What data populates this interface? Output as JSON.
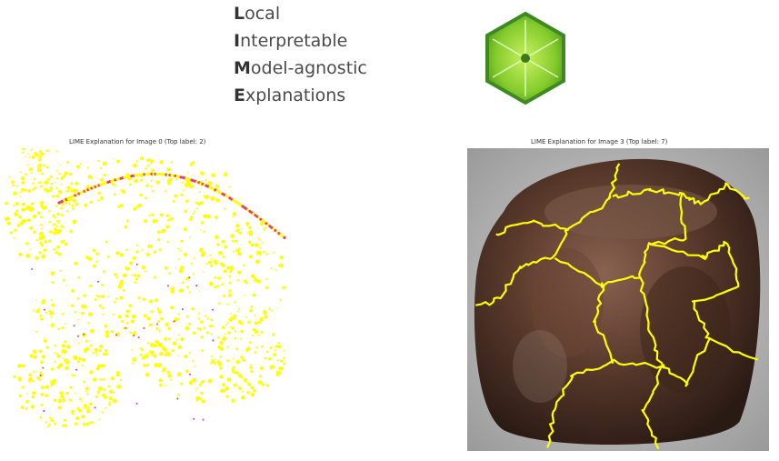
{
  "acronym": {
    "lines": [
      {
        "first": "L",
        "rest": "ocal"
      },
      {
        "first": "I",
        "rest": "nterpretable"
      },
      {
        "first": "M",
        "rest": "odel-agnostic"
      },
      {
        "first": "E",
        "rest": "xplanations"
      }
    ]
  },
  "logo": {
    "icon": "lime-slice-hexagon-icon",
    "fill_color": "#7ec62a",
    "border_color": "#3d8a22"
  },
  "panels": [
    {
      "title": "LIME Explanation for Image 0 (Top label: 2)",
      "boundary_color": "#ffff00",
      "highlight_color": "#e0406a"
    },
    {
      "title": "LIME Explanation for Image 3 (Top label: 7)",
      "boundary_color": "#ffff00"
    }
  ]
}
